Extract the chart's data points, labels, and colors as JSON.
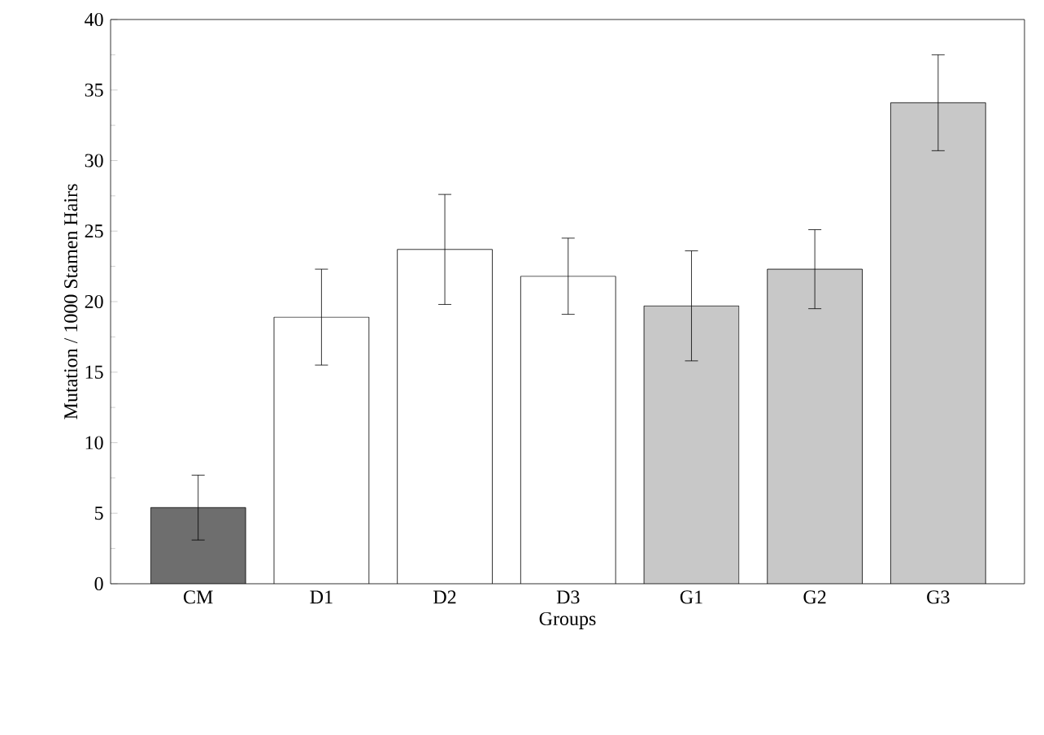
{
  "chart_data": {
    "type": "bar",
    "xlabel": "Groups",
    "ylabel": "Mutation / 1000 Stamen Hairs",
    "categories": [
      "CM",
      "D1",
      "D2",
      "D3",
      "G1",
      "G2",
      "G3"
    ],
    "values": [
      5.4,
      18.9,
      23.7,
      21.8,
      19.7,
      22.3,
      34.1
    ],
    "errors": [
      2.3,
      3.4,
      3.9,
      2.7,
      3.9,
      2.8,
      3.4
    ],
    "colors": [
      "#6e6e6e",
      "#ffffff",
      "#ffffff",
      "#ffffff",
      "#c8c8c8",
      "#c8c8c8",
      "#c8c8c8"
    ],
    "ylim": [
      0,
      40
    ],
    "yticks": [
      0,
      5,
      10,
      15,
      20,
      25,
      30,
      35,
      40
    ]
  }
}
